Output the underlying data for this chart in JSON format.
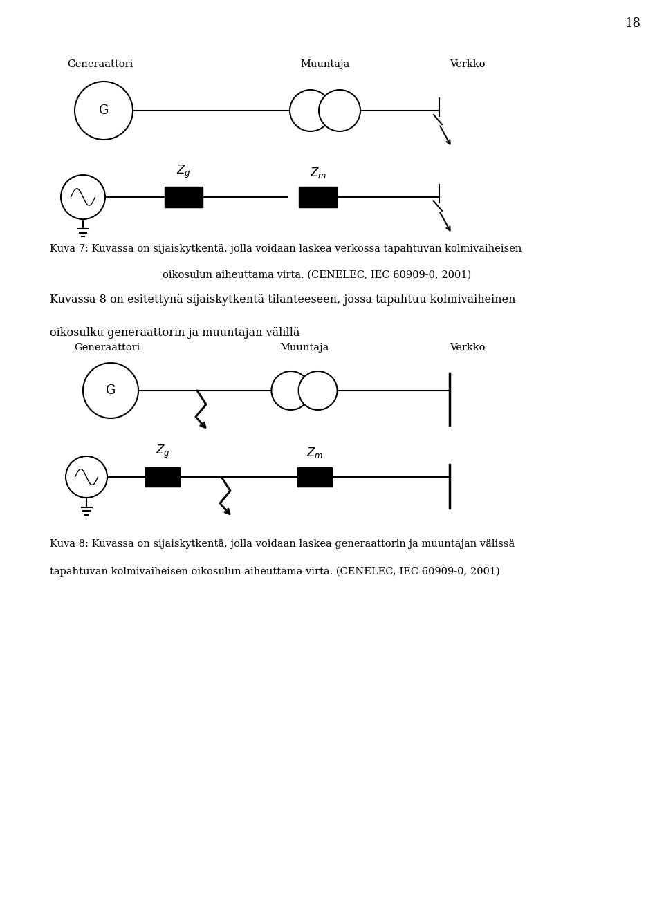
{
  "page_number": "18",
  "background_color": "#ffffff",
  "text_color": "#000000",
  "caption7_line1": "Kuva 7: Kuvassa on sijaiskytkentä, jolla voidaan laskea verkossa tapahtuvan kolmivaiheisen",
  "caption7_line2": "oikosulun aiheuttama virta. (CENELEC, IEC 60909-0, 2001)",
  "caption8_line1": "Kuvassa 8 on esitettynä sijaiskytkentä tilanteeseen, jossa tapahtuu kolmivaiheinen",
  "caption8_line2": "oikosulku generaattorin ja muuntajan välillä",
  "caption8b_line1": "Kuva 8: Kuvassa on sijaiskytkentä, jolla voidaan laskea generaattorin ja muuntajan välissä",
  "caption8b_line2": "tapahtuvan kolmivaiheisen oikosulun aiheuttama virta. (CENELEC, IEC 60909-0, 2001)",
  "fig_width": 9.6,
  "fig_height": 13.15,
  "dpi": 100
}
